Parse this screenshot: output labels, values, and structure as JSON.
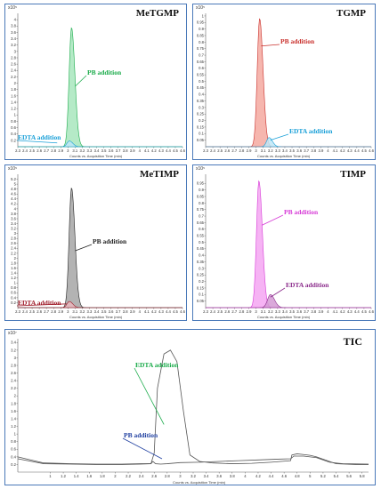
{
  "chart_data": [
    {
      "type": "area",
      "title": "MeTGMP",
      "scale_label": "x10⁵",
      "xlabel": "Counts vs. Acquisition Time (min)",
      "xlim": [
        2.3,
        4.6
      ],
      "xticks": [
        "2.3",
        "2.4",
        "2.5",
        "2.6",
        "2.7",
        "2.8",
        "2.9",
        "3",
        "3.1",
        "3.2",
        "3.3",
        "3.4",
        "3.5",
        "3.6",
        "3.7",
        "3.8",
        "3.9",
        "4",
        "4.1",
        "4.2",
        "4.3",
        "4.4",
        "4.5",
        "4.6"
      ],
      "ylim": [
        0,
        4.2
      ],
      "yticks": [
        "0.2",
        "0.4",
        "0.6",
        "0.8",
        "1",
        "1.2",
        "1.4",
        "1.6",
        "1.8",
        "2",
        "2.2",
        "2.4",
        "2.6",
        "2.8",
        "3",
        "3.2",
        "3.4",
        "3.6",
        "3.8",
        "4"
      ],
      "series": [
        {
          "name": "PB addition",
          "color": "#1aab4a",
          "fill": "#a8e6bd",
          "peak_x": 3.05,
          "peak_y": 3.75,
          "width": 0.1
        },
        {
          "name": "EDTA addition",
          "color": "#1aa0d8",
          "fill": "#bfe6f6",
          "peak_x": 3.02,
          "peak_y": 0.18,
          "width": 0.1
        }
      ]
    },
    {
      "type": "area",
      "title": "TGMP",
      "scale_label": "x10⁵",
      "xlabel": "Counts vs. Acquisition Time (min)",
      "xlim": [
        2.3,
        4.6
      ],
      "xticks": [
        "2.3",
        "2.4",
        "2.5",
        "2.6",
        "2.7",
        "2.8",
        "2.9",
        "3",
        "3.1",
        "3.2",
        "3.3",
        "3.4",
        "3.5",
        "3.6",
        "3.7",
        "3.8",
        "3.9",
        "4",
        "4.1",
        "4.2",
        "4.3",
        "4.4",
        "4.5",
        "4.6"
      ],
      "ylim": [
        0,
        1.02
      ],
      "yticks": [
        "0.05",
        "0.1",
        "0.15",
        "0.2",
        "0.25",
        "0.3",
        "0.35",
        "0.4",
        "0.45",
        "0.5",
        "0.55",
        "0.6",
        "0.65",
        "0.7",
        "0.75",
        "0.8",
        "0.85",
        "0.9",
        "0.95",
        "1"
      ],
      "series": [
        {
          "name": "PB addition",
          "color": "#c9302c",
          "fill": "#f4a9a0",
          "peak_x": 3.05,
          "peak_y": 0.98,
          "width": 0.1
        },
        {
          "name": "EDTA addition",
          "color": "#1aa0d8",
          "fill": "#bfe6f6",
          "peak_x": 3.18,
          "peak_y": 0.07,
          "width": 0.1
        }
      ]
    },
    {
      "type": "area",
      "title": "MeTIMP",
      "scale_label": "x10⁵",
      "xlabel": "Counts vs. Acquisition Time (min)",
      "xlim": [
        2.3,
        4.6
      ],
      "xticks": [
        "2.3",
        "2.4",
        "2.5",
        "2.6",
        "2.7",
        "2.8",
        "2.9",
        "3",
        "3.1",
        "3.2",
        "3.3",
        "3.4",
        "3.5",
        "3.6",
        "3.7",
        "3.8",
        "3.9",
        "4",
        "4.1",
        "4.2",
        "4.3",
        "4.4",
        "4.5",
        "4.6"
      ],
      "ylim": [
        0,
        5.4
      ],
      "yticks": [
        "0.2",
        "0.4",
        "0.6",
        "0.8",
        "1",
        "1.2",
        "1.4",
        "1.6",
        "1.8",
        "2",
        "2.2",
        "2.4",
        "2.6",
        "2.8",
        "3",
        "3.2",
        "3.4",
        "3.6",
        "3.8",
        "4",
        "4.2",
        "4.4",
        "4.6",
        "4.8",
        "5",
        "5.2"
      ],
      "series": [
        {
          "name": "PB addition",
          "color": "#222222",
          "fill": "#a6a6a6",
          "peak_x": 3.05,
          "peak_y": 4.85,
          "width": 0.1
        },
        {
          "name": "EDTA addition",
          "color": "#a01c2a",
          "fill": "#e7b7bd",
          "peak_x": 3.02,
          "peak_y": 0.25,
          "width": 0.1
        }
      ]
    },
    {
      "type": "area",
      "title": "TIMP",
      "scale_label": "x10⁵",
      "xlabel": "Counts vs. Acquisition Time (min)",
      "xlim": [
        2.3,
        4.6
      ],
      "xticks": [
        "2.3",
        "2.4",
        "2.5",
        "2.6",
        "2.7",
        "2.8",
        "2.9",
        "3",
        "3.1",
        "3.2",
        "3.3",
        "3.4",
        "3.5",
        "3.6",
        "3.7",
        "3.8",
        "3.9",
        "4",
        "4.1",
        "4.2",
        "4.3",
        "4.4",
        "4.5",
        "4.6"
      ],
      "ylim": [
        0,
        1.02
      ],
      "yticks": [
        "0.05",
        "0.1",
        "0.15",
        "0.2",
        "0.25",
        "0.3",
        "0.35",
        "0.4",
        "0.45",
        "0.5",
        "0.55",
        "0.6",
        "0.65",
        "0.7",
        "0.75",
        "0.8",
        "0.85",
        "0.9",
        "0.95"
      ],
      "series": [
        {
          "name": "PB addition",
          "color": "#d63ad6",
          "fill": "#f4a6f2",
          "peak_x": 3.04,
          "peak_y": 0.97,
          "width": 0.1
        },
        {
          "name": "EDTA addition",
          "color": "#8a2a8a",
          "fill": "#d39ad3",
          "peak_x": 3.2,
          "peak_y": 0.1,
          "width": 0.12
        }
      ]
    },
    {
      "type": "line",
      "title": "TIC",
      "scale_label": "x10⁷",
      "xlabel": "Counts vs. Acquisition Time (min)",
      "xlim": [
        0.5,
        5.9
      ],
      "xticks": [
        "1",
        "1.2",
        "1.4",
        "1.6",
        "1.8",
        "2",
        "2.2",
        "2.4",
        "2.6",
        "2.8",
        "3",
        "3.2",
        "3.4",
        "3.6",
        "3.8",
        "4",
        "4.2",
        "4.4",
        "4.6",
        "4.8",
        "5",
        "5.2",
        "5.4",
        "5.6",
        "5.8"
      ],
      "ylim": [
        0,
        3.5
      ],
      "yticks": [
        "0.2",
        "0.4",
        "0.6",
        "0.8",
        "1",
        "1.2",
        "1.4",
        "1.6",
        "1.8",
        "2",
        "2.2",
        "2.4",
        "2.6",
        "2.8",
        "3",
        "3.2",
        "3.4"
      ],
      "series": [
        {
          "name": "EDTA addition",
          "color": "#1aab4a",
          "x": [
            0.5,
            0.9,
            1.3,
            1.7,
            2.1,
            2.4,
            2.55,
            2.6,
            2.65,
            2.75,
            2.85,
            2.95,
            3.05,
            3.15,
            3.3,
            3.5,
            3.8,
            4.1,
            4.4,
            4.7,
            4.72,
            4.8,
            4.9,
            5.0,
            5.1,
            5.4,
            5.7,
            5.9
          ],
          "y": [
            0.35,
            0.22,
            0.21,
            0.2,
            0.2,
            0.21,
            0.22,
            0.5,
            2.2,
            3.1,
            3.2,
            2.9,
            1.6,
            0.45,
            0.28,
            0.24,
            0.22,
            0.23,
            0.26,
            0.3,
            0.45,
            0.48,
            0.46,
            0.44,
            0.4,
            0.22,
            0.2,
            0.2
          ]
        },
        {
          "name": "PB addition",
          "color": "#1f3fa0",
          "x": [
            0.5,
            0.9,
            1.3,
            1.7,
            2.1,
            2.4,
            2.55,
            2.58,
            2.62,
            2.7,
            2.8,
            3.0,
            3.3,
            3.6,
            3.9,
            4.2,
            4.5,
            4.7,
            4.75,
            4.9,
            5.1,
            5.3,
            5.5,
            5.9
          ],
          "y": [
            0.4,
            0.24,
            0.22,
            0.21,
            0.21,
            0.22,
            0.22,
            0.28,
            0.22,
            0.21,
            0.22,
            0.25,
            0.26,
            0.28,
            0.3,
            0.32,
            0.34,
            0.35,
            0.42,
            0.42,
            0.38,
            0.26,
            0.22,
            0.21
          ]
        }
      ]
    }
  ]
}
